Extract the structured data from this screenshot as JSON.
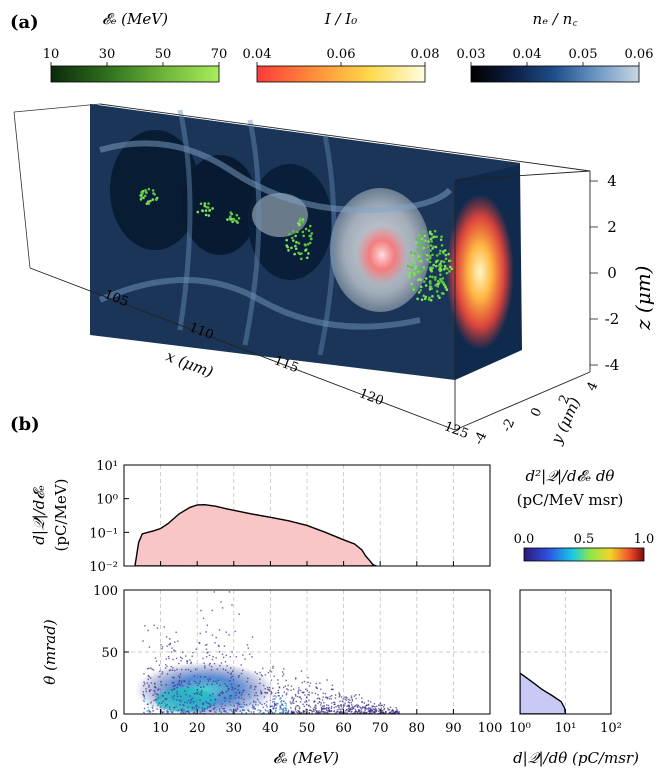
{
  "panel_a": {
    "label": "(a)",
    "colorbars": [
      {
        "title": "𝓔ₑ (MeV)",
        "ticks": [
          "10",
          "30",
          "50",
          "70"
        ],
        "colors": [
          "#0b2a0b",
          "#2f6f1e",
          "#6db43a",
          "#a8ee5c"
        ]
      },
      {
        "title": "I / I₀",
        "ticks": [
          "0.04",
          "0.06",
          "0.08"
        ],
        "colors": [
          "#ff3b3b",
          "#ff8c3a",
          "#ffd84a",
          "#fffde0"
        ]
      },
      {
        "title": "nₑ / n꜀",
        "ticks": [
          "0.03",
          "0.04",
          "0.05",
          "0.06"
        ],
        "colors": [
          "#000000",
          "#0d1f45",
          "#1f4f8c",
          "#6f97c5",
          "#c8d6e4"
        ]
      }
    ],
    "x_axis": {
      "label": "x (μm)",
      "ticks": [
        "105",
        "110",
        "115",
        "120",
        "125"
      ]
    },
    "y_axis": {
      "label": "y (μm)",
      "ticks": [
        "4",
        "2",
        "0",
        "-2",
        "-4"
      ]
    },
    "z_axis": {
      "label": "z (μm)",
      "ticks": [
        "4",
        "2",
        "0",
        "-2",
        "-4"
      ]
    }
  },
  "panel_b": {
    "label": "(b)"
  },
  "chart_data": [
    {
      "type": "area",
      "title": "",
      "xlabel": "",
      "ylabel": "d|𝒬|/d𝓔ₑ (pC/MeV)",
      "y_scale": "log",
      "xlim": [
        0,
        100
      ],
      "ylim": [
        0.01,
        10
      ],
      "y_ticks": [
        "10¹",
        "10⁰",
        "10⁻¹",
        "10⁻²"
      ],
      "grid": true,
      "fill_color": "#f8c6c6",
      "x": [
        3,
        4,
        5,
        8,
        10,
        12,
        15,
        18,
        20,
        22,
        25,
        28,
        30,
        35,
        40,
        45,
        50,
        55,
        60,
        63,
        65,
        66,
        67,
        68,
        69
      ],
      "values": [
        0.01,
        0.05,
        0.09,
        0.11,
        0.13,
        0.18,
        0.35,
        0.55,
        0.65,
        0.66,
        0.6,
        0.5,
        0.45,
        0.35,
        0.28,
        0.22,
        0.16,
        0.1,
        0.06,
        0.045,
        0.03,
        0.02,
        0.015,
        0.011,
        0.01
      ]
    },
    {
      "type": "heatmap",
      "title": "",
      "xlabel": "𝓔ₑ (MeV)",
      "ylabel": "θ (mrad)",
      "xlim": [
        0,
        100
      ],
      "ylim": [
        0,
        100
      ],
      "x_ticks": [
        "0",
        "10",
        "20",
        "30",
        "40",
        "50",
        "60",
        "70",
        "80",
        "90",
        "100"
      ],
      "y_ticks": [
        "100",
        "50",
        "0"
      ],
      "colorbar": {
        "title": "d²|𝒬|/d𝓔ₑ dθ",
        "units": "(pC/MeV msr)",
        "ticks": [
          "0.0",
          "0.5",
          "1.0"
        ]
      },
      "grid": true
    },
    {
      "type": "area",
      "title": "",
      "xlabel": "d|𝒬|/dθ (pC/msr)",
      "ylabel": "",
      "x_scale": "log",
      "xlim": [
        1,
        100
      ],
      "ylim": [
        0,
        100
      ],
      "x_ticks": [
        "10⁰",
        "10¹",
        "10²"
      ],
      "fill_color": "#c9c9f5",
      "theta": [
        0,
        5,
        10,
        15,
        20,
        25,
        30,
        33
      ],
      "values": [
        10,
        9.5,
        8,
        5,
        3,
        2,
        1.3,
        1
      ]
    }
  ]
}
